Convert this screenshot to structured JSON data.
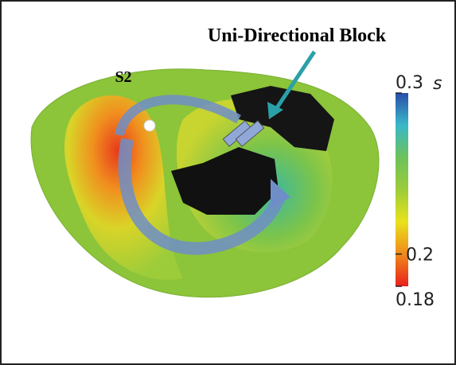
{
  "annotations": {
    "stimulus": "S2",
    "block": "Uni-Directional Block"
  },
  "colorbar": {
    "lim": [
      0.18,
      0.3
    ],
    "ticks": [
      0.18,
      0.2,
      0.3
    ],
    "unit": "s",
    "colors": [
      "#e8201c",
      "#f08a1c",
      "#e8e21c",
      "#9ccc3a",
      "#6cc25a",
      "#3ab8c8",
      "#2a4ea8"
    ]
  }
}
